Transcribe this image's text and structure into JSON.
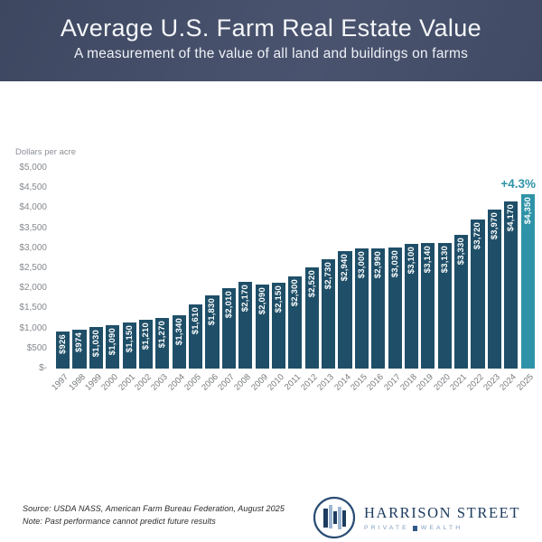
{
  "header": {
    "title": "Average U.S. Farm Real Estate Value",
    "subtitle": "A measurement of the value of all land and buildings on farms"
  },
  "chart_data": {
    "type": "bar",
    "title": "Average U.S. Farm Real Estate Value",
    "ylabel": "Dollars per acre",
    "xlabel": "",
    "ylim": [
      0,
      5000
    ],
    "ytick_step": 500,
    "ytick_labels": [
      "$5,000",
      "$4,500",
      "$4,000",
      "$3,500",
      "$3,000",
      "$2,500",
      "$2,000",
      "$1,500",
      "$1,000",
      "$500",
      "$-"
    ],
    "grid": false,
    "categories": [
      "1997",
      "1998",
      "1999",
      "2000",
      "2001",
      "2002",
      "2003",
      "2004",
      "2005",
      "2006",
      "2007",
      "2008",
      "2009",
      "2010",
      "2011",
      "2012",
      "2013",
      "2014",
      "2015",
      "2016",
      "2017",
      "2018",
      "2019",
      "2020",
      "2021",
      "2022",
      "2023",
      "2024",
      "2025"
    ],
    "values": [
      926,
      974,
      1030,
      1090,
      1150,
      1210,
      1270,
      1340,
      1610,
      1830,
      2010,
      2170,
      2090,
      2150,
      2300,
      2520,
      2730,
      2940,
      3000,
      2990,
      3030,
      3100,
      3140,
      3130,
      3330,
      3720,
      3970,
      4170,
      4350
    ],
    "bar_labels": [
      "$926",
      "$974",
      "$1,030",
      "$1,090",
      "$1,150",
      "$1,210",
      "$1,270",
      "$1,340",
      "$1,610",
      "$1,830",
      "$2,010",
      "$2,170",
      "$2,090",
      "$2,150",
      "$2,300",
      "$2,520",
      "$2,730",
      "$2,940",
      "$3,000",
      "$2,990",
      "$3,030",
      "$3,100",
      "$3,140",
      "$3,130",
      "$3,330",
      "$3,720",
      "$3,970",
      "$4,170",
      "$4,350"
    ],
    "highlight_index": 28,
    "annotation": "+4.3%",
    "colors": {
      "bar": "#1f4f68",
      "highlight": "#2e93a8",
      "annotation": "#2e93a8",
      "header_bg": "#454f69"
    }
  },
  "footer": {
    "source": "Source: USDA NASS, American Farm Bureau Federation, August 2025",
    "note": "Note: Past performance cannot predict future results",
    "logo": {
      "name": "HARRISON STREET",
      "tagline_left": "PRIVATE",
      "tagline_right": "WEALTH"
    }
  }
}
